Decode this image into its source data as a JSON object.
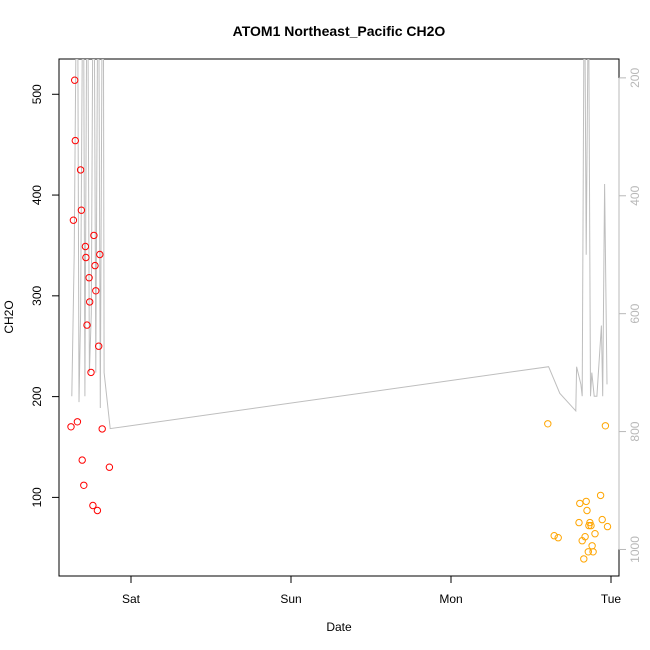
{
  "chart_data": {
    "type": "scatter",
    "title": "ATOM1 Northeast_Pacific CH2O",
    "xlabel": "Date",
    "ylabel": "CH2O",
    "x_ticks": [
      {
        "label": "Sat",
        "day": 1.0
      },
      {
        "label": "Sun",
        "day": 2.0
      },
      {
        "label": "Mon",
        "day": 3.0
      },
      {
        "label": "Tue",
        "day": 4.0
      }
    ],
    "xlim_days": [
      0.55,
      4.05
    ],
    "ylim": [
      22,
      535
    ],
    "y_ticks": [
      100,
      200,
      300,
      400,
      500
    ],
    "right_axis": {
      "ylim": [
        1045,
        168
      ],
      "reversed": true,
      "ticks": [
        200,
        400,
        600,
        800,
        1000
      ],
      "color": "#b8b8b8"
    },
    "grid": false,
    "colors": {
      "series_1": "#ff0000",
      "series_2": "#ffa500",
      "line": "#bebebe"
    },
    "series": [
      {
        "color": "#ff0000",
        "points": [
          [
            0.625,
            170
          ],
          [
            0.64,
            375
          ],
          [
            0.648,
            514
          ],
          [
            0.652,
            454
          ],
          [
            0.665,
            175
          ],
          [
            0.685,
            425
          ],
          [
            0.69,
            385
          ],
          [
            0.695,
            137
          ],
          [
            0.705,
            112
          ],
          [
            0.715,
            349
          ],
          [
            0.718,
            338
          ],
          [
            0.725,
            271
          ],
          [
            0.738,
            318
          ],
          [
            0.742,
            294
          ],
          [
            0.75,
            224
          ],
          [
            0.762,
            92
          ],
          [
            0.768,
            360
          ],
          [
            0.775,
            330
          ],
          [
            0.78,
            305
          ],
          [
            0.79,
            87
          ],
          [
            0.798,
            250
          ],
          [
            0.805,
            341
          ],
          [
            0.82,
            168
          ],
          [
            0.865,
            130
          ]
        ]
      },
      {
        "color": "#ffa500",
        "points": [
          [
            3.605,
            173
          ],
          [
            3.645,
            62
          ],
          [
            3.67,
            60
          ],
          [
            3.8,
            75
          ],
          [
            3.805,
            94
          ],
          [
            3.82,
            57
          ],
          [
            3.83,
            39
          ],
          [
            3.838,
            61
          ],
          [
            3.845,
            96
          ],
          [
            3.85,
            87
          ],
          [
            3.858,
            46
          ],
          [
            3.862,
            72
          ],
          [
            3.868,
            75
          ],
          [
            3.875,
            72
          ],
          [
            3.882,
            52
          ],
          [
            3.888,
            46
          ],
          [
            3.9,
            64
          ],
          [
            3.935,
            102
          ],
          [
            3.945,
            78
          ],
          [
            3.965,
            171
          ],
          [
            3.978,
            71
          ]
        ]
      }
    ],
    "line_series": {
      "axis": "right",
      "color": "#bebebe",
      "points": [
        [
          0.63,
          740
        ],
        [
          0.645,
          500
        ],
        [
          0.655,
          168
        ],
        [
          0.668,
          168
        ],
        [
          0.675,
          750
        ],
        [
          0.685,
          600
        ],
        [
          0.695,
          168
        ],
        [
          0.705,
          168
        ],
        [
          0.712,
          740
        ],
        [
          0.722,
          168
        ],
        [
          0.732,
          168
        ],
        [
          0.74,
          700
        ],
        [
          0.752,
          600
        ],
        [
          0.76,
          168
        ],
        [
          0.772,
          168
        ],
        [
          0.78,
          700
        ],
        [
          0.79,
          168
        ],
        [
          0.8,
          168
        ],
        [
          0.808,
          760
        ],
        [
          0.818,
          168
        ],
        [
          0.828,
          168
        ],
        [
          0.832,
          700
        ],
        [
          0.87,
          795
        ],
        [
          3.61,
          690
        ],
        [
          3.68,
          735
        ],
        [
          3.78,
          765
        ],
        [
          3.785,
          690
        ],
        [
          3.812,
          720
        ],
        [
          3.82,
          740
        ],
        [
          3.83,
          168
        ],
        [
          3.838,
          168
        ],
        [
          3.845,
          500
        ],
        [
          3.855,
          168
        ],
        [
          3.862,
          168
        ],
        [
          3.872,
          740
        ],
        [
          3.88,
          700
        ],
        [
          3.895,
          740
        ],
        [
          3.912,
          740
        ],
        [
          3.94,
          620
        ],
        [
          3.948,
          740
        ],
        [
          3.96,
          380
        ],
        [
          3.975,
          720
        ]
      ]
    }
  }
}
